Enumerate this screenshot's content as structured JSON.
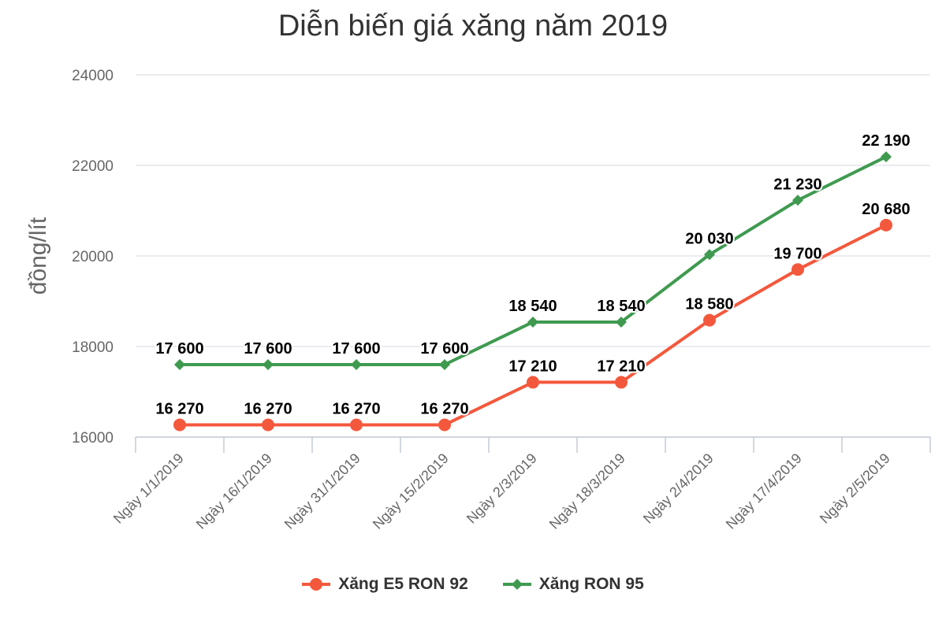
{
  "chart_data": {
    "type": "line",
    "title": "Diễn biến giá xăng năm 2019",
    "xlabel": "",
    "ylabel": "đồng/lít",
    "ylim": [
      16000,
      24000
    ],
    "yticks": [
      "16000",
      "18000",
      "20000",
      "22000",
      "24000"
    ],
    "categories": [
      "Ngày 1/1/2019",
      "Ngày 16/1/2019",
      "Ngày 31/1/2019",
      "Ngày 15/2/2019",
      "Ngày 2/3/2019",
      "Ngày 18/3/2019",
      "Ngày 2/4/2019",
      "Ngày 17/4/2019",
      "Ngày 2/5/2019"
    ],
    "grid": true,
    "legend": "bottom",
    "series": [
      {
        "name": "Xăng E5 RON 92",
        "color": "#f4583c",
        "marker": "circle",
        "values": [
          16270,
          16270,
          16270,
          16270,
          17210,
          17210,
          18580,
          19700,
          20680
        ],
        "labels": [
          "16 270",
          "16 270",
          "16 270",
          "16 270",
          "17 210",
          "17 210",
          "18 580",
          "19 700",
          "20 680"
        ]
      },
      {
        "name": "Xăng RON 95",
        "color": "#3f9a50",
        "marker": "diamond",
        "values": [
          17600,
          17600,
          17600,
          17600,
          18540,
          18540,
          20030,
          21230,
          22190
        ],
        "labels": [
          "17 600",
          "17 600",
          "17 600",
          "17 600",
          "18 540",
          "18 540",
          "20 030",
          "21 230",
          "22 190"
        ]
      }
    ]
  }
}
